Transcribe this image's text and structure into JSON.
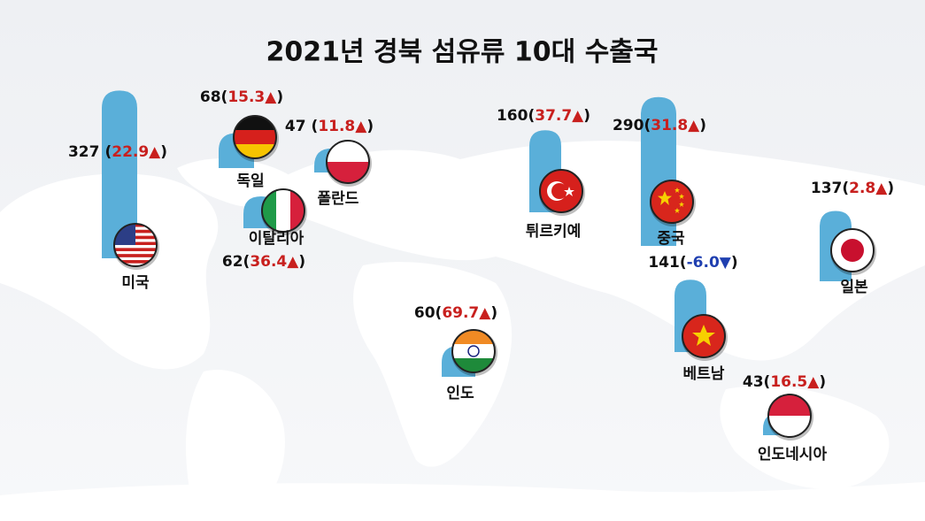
{
  "chart_data": {
    "type": "bar",
    "title": "2021년 경북 섬유류 10대 수출국",
    "categories": [
      "미국",
      "독일",
      "폴란드",
      "이탈리아",
      "튀르키예",
      "중국",
      "일본",
      "베트남",
      "인도",
      "인도네시아"
    ],
    "values": [
      327,
      68,
      47,
      62,
      160,
      290,
      137,
      141,
      60,
      43
    ],
    "changes": [
      22.9,
      15.3,
      11.8,
      36.4,
      37.7,
      31.8,
      2.8,
      -6.0,
      69.7,
      16.5
    ],
    "change_labels": [
      "(22.9▲)",
      "(15.3▲)",
      "(11.8▲)",
      "(36.4▲)",
      "(37.7▲)",
      "(31.8▲)",
      "(2.8▲)",
      "(-6.0▼)",
      "(69.7▲)",
      "(16.5▲)"
    ],
    "color": "#5aafd9",
    "increase_color": "#c8201e",
    "decrease_color": "#1f3fb0"
  }
}
